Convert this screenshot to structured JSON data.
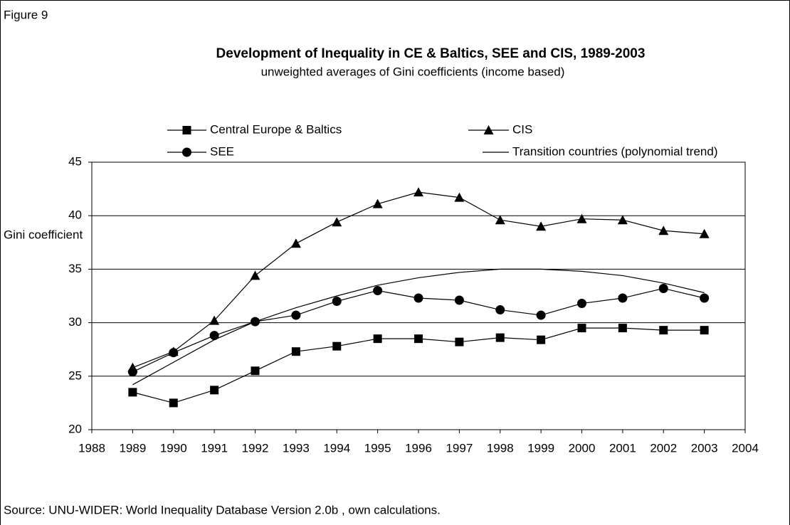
{
  "figure_label": "Figure  9",
  "source": "Source: UNU-WIDER: World Inequality Database Version 2.0b , own calculations.",
  "chart_data": {
    "type": "line",
    "title": "Development of Inequality in CE & Baltics, SEE and CIS, 1989-2003",
    "subtitle": "unweighted averages of Gini coefficients (income based)",
    "y_label": "Gini coefficient",
    "x": [
      1989,
      1990,
      1991,
      1992,
      1993,
      1994,
      1995,
      1996,
      1997,
      1998,
      1999,
      2000,
      2001,
      2002,
      2003
    ],
    "xlim": [
      1988,
      2004
    ],
    "xticks": [
      1988,
      1989,
      1990,
      1991,
      1992,
      1993,
      1994,
      1995,
      1996,
      1997,
      1998,
      1999,
      2000,
      2001,
      2002,
      2003,
      2004
    ],
    "ylim": [
      20,
      45
    ],
    "yticks": [
      20,
      25,
      30,
      35,
      40,
      45
    ],
    "grid": true,
    "series": [
      {
        "name": "Central Europe & Baltics",
        "color": "#000000",
        "marker": "square",
        "values": [
          23.5,
          22.5,
          23.7,
          25.5,
          27.3,
          27.8,
          28.5,
          28.5,
          28.2,
          28.6,
          28.4,
          29.5,
          29.5,
          29.3,
          29.3
        ]
      },
      {
        "name": "SEE",
        "color": "#000000",
        "marker": "circle",
        "values": [
          25.4,
          27.2,
          28.8,
          30.1,
          30.7,
          32.0,
          33.0,
          32.3,
          32.1,
          31.2,
          30.7,
          31.8,
          32.3,
          33.2,
          32.3
        ]
      },
      {
        "name": "CIS",
        "color": "#000000",
        "marker": "triangle",
        "values": [
          25.8,
          27.3,
          30.2,
          34.4,
          37.4,
          39.4,
          41.1,
          42.2,
          41.7,
          39.6,
          39.0,
          39.7,
          39.6,
          38.6,
          38.3
        ]
      },
      {
        "name": "Transition countries (polynomial trend)",
        "color": "#000000",
        "marker": "none",
        "values": [
          24.2,
          26.3,
          28.4,
          30.1,
          31.4,
          32.5,
          33.5,
          34.2,
          34.7,
          35.0,
          35.0,
          34.8,
          34.4,
          33.7,
          32.8
        ]
      }
    ]
  }
}
